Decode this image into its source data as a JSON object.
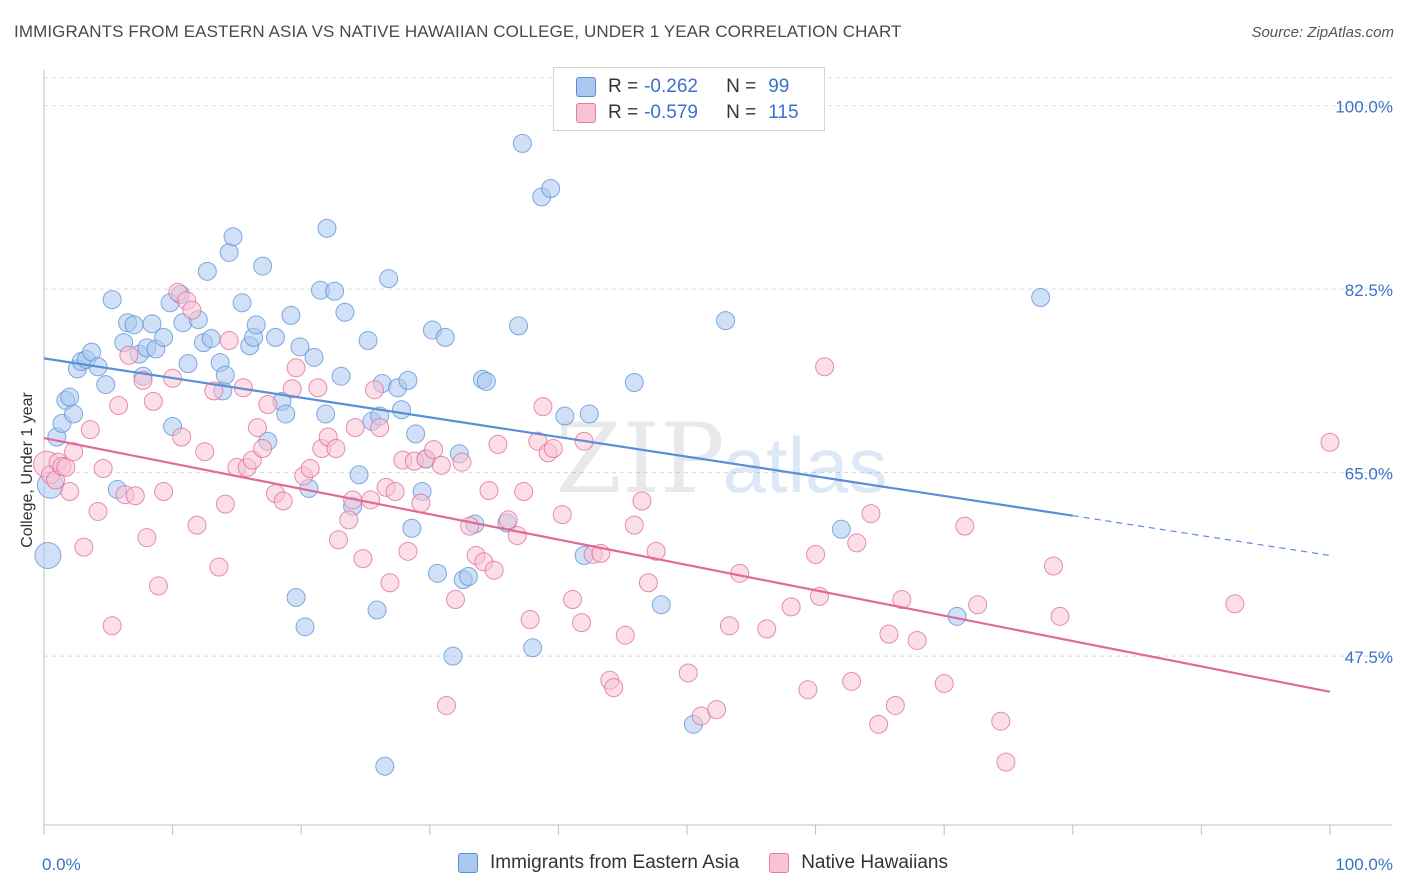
{
  "title": "IMMIGRANTS FROM EASTERN ASIA VS NATIVE HAWAIIAN COLLEGE, UNDER 1 YEAR CORRELATION CHART",
  "source": "Source: ZipAtlas.com",
  "watermark": {
    "zip": "ZIP",
    "atlas": "atlas"
  },
  "stats": [
    {
      "r_label": "R =",
      "r_value": "-0.262",
      "n_label": "N =",
      "n_value": "99",
      "fill": "#aac8f0",
      "stroke": "#5a8fd6"
    },
    {
      "r_label": "R =",
      "r_value": "-0.579",
      "n_label": "N =",
      "n_value": "115",
      "fill": "#f8c3d5",
      "stroke": "#e87aa0"
    }
  ],
  "chart_data": {
    "type": "scatter",
    "xlabel": "",
    "ylabel": "College, Under 1 year",
    "xlim": [
      0,
      100
    ],
    "ylim": [
      31.4,
      103.4
    ],
    "y_ticks": [
      47.5,
      65.0,
      82.5,
      100.0
    ],
    "y_tick_labels": [
      "47.5%",
      "65.0%",
      "82.5%",
      "100.0%"
    ],
    "x_tick_labels": [
      "0.0%",
      "100.0%"
    ],
    "grid": true,
    "legend_position": "bottom-center",
    "series": [
      {
        "name": "Immigrants from Eastern Asia",
        "color": "#5a8fd6",
        "fill": "#aac8f0",
        "trend": {
          "x": [
            0,
            80
          ],
          "y": [
            75.9,
            60.9
          ],
          "dashed_to": [
            100,
            57.1
          ]
        },
        "points": [
          [
            0.3,
            57.1
          ],
          [
            0.5,
            63.8
          ],
          [
            1.0,
            68.4
          ],
          [
            1.4,
            69.7
          ],
          [
            1.7,
            71.9
          ],
          [
            2.0,
            72.2
          ],
          [
            2.3,
            70.6
          ],
          [
            2.6,
            74.9
          ],
          [
            2.9,
            75.6
          ],
          [
            3.3,
            75.8
          ],
          [
            3.7,
            76.5
          ],
          [
            4.2,
            75.1
          ],
          [
            4.8,
            73.4
          ],
          [
            5.3,
            81.5
          ],
          [
            5.7,
            63.4
          ],
          [
            6.2,
            77.4
          ],
          [
            6.5,
            79.3
          ],
          [
            7.0,
            79.1
          ],
          [
            7.4,
            76.3
          ],
          [
            7.7,
            74.2
          ],
          [
            8.0,
            76.9
          ],
          [
            8.4,
            79.2
          ],
          [
            8.7,
            76.8
          ],
          [
            9.3,
            77.9
          ],
          [
            9.8,
            81.2
          ],
          [
            10.0,
            69.4
          ],
          [
            10.6,
            82.0
          ],
          [
            10.8,
            79.3
          ],
          [
            11.2,
            75.4
          ],
          [
            12.0,
            79.6
          ],
          [
            12.4,
            77.4
          ],
          [
            12.7,
            84.2
          ],
          [
            13.0,
            77.8
          ],
          [
            13.7,
            75.5
          ],
          [
            13.9,
            72.8
          ],
          [
            14.1,
            74.3
          ],
          [
            14.4,
            86.0
          ],
          [
            14.7,
            87.5
          ],
          [
            15.4,
            81.2
          ],
          [
            16.0,
            77.1
          ],
          [
            16.3,
            77.9
          ],
          [
            16.5,
            79.1
          ],
          [
            17.0,
            84.7
          ],
          [
            17.4,
            68.0
          ],
          [
            18.0,
            77.9
          ],
          [
            18.5,
            71.8
          ],
          [
            18.8,
            70.6
          ],
          [
            19.2,
            80.0
          ],
          [
            19.6,
            53.1
          ],
          [
            19.9,
            77.0
          ],
          [
            20.3,
            50.3
          ],
          [
            20.6,
            63.5
          ],
          [
            21.0,
            76.0
          ],
          [
            21.5,
            82.4
          ],
          [
            21.9,
            70.6
          ],
          [
            22.0,
            88.3
          ],
          [
            22.6,
            82.3
          ],
          [
            23.1,
            74.2
          ],
          [
            23.4,
            80.3
          ],
          [
            24.0,
            61.8
          ],
          [
            24.5,
            64.8
          ],
          [
            25.2,
            77.6
          ],
          [
            25.5,
            69.9
          ],
          [
            25.9,
            51.9
          ],
          [
            26.3,
            73.5
          ],
          [
            26.1,
            70.4
          ],
          [
            26.5,
            37.0
          ],
          [
            26.8,
            83.5
          ],
          [
            27.5,
            73.1
          ],
          [
            27.8,
            71.0
          ],
          [
            28.3,
            73.8
          ],
          [
            28.6,
            59.7
          ],
          [
            28.9,
            68.7
          ],
          [
            29.4,
            63.2
          ],
          [
            29.7,
            66.3
          ],
          [
            30.2,
            78.6
          ],
          [
            30.6,
            55.4
          ],
          [
            31.2,
            77.9
          ],
          [
            31.8,
            47.5
          ],
          [
            32.3,
            66.8
          ],
          [
            32.6,
            54.8
          ],
          [
            33.0,
            55.1
          ],
          [
            33.5,
            60.1
          ],
          [
            34.1,
            73.9
          ],
          [
            34.4,
            73.7
          ],
          [
            36.0,
            60.2
          ],
          [
            36.9,
            79.0
          ],
          [
            37.2,
            96.4
          ],
          [
            38.0,
            48.3
          ],
          [
            38.7,
            91.3
          ],
          [
            39.4,
            92.1
          ],
          [
            40.5,
            70.4
          ],
          [
            42.0,
            57.1
          ],
          [
            42.4,
            70.6
          ],
          [
            45.9,
            73.6
          ],
          [
            48.0,
            52.4
          ],
          [
            50.5,
            41.0
          ],
          [
            53.0,
            79.5
          ],
          [
            62.0,
            59.6
          ],
          [
            71.0,
            51.3
          ],
          [
            77.5,
            81.7
          ]
        ]
      },
      {
        "name": "Native Hawaiians",
        "color": "#e06a95",
        "fill": "#f8c3d5",
        "trend": {
          "x": [
            0,
            100
          ],
          "y": [
            68.3,
            44.1
          ]
        },
        "points": [
          [
            0.2,
            65.8
          ],
          [
            0.5,
            64.8
          ],
          [
            0.9,
            64.3
          ],
          [
            1.1,
            66.0
          ],
          [
            1.4,
            65.6
          ],
          [
            1.7,
            65.5
          ],
          [
            2.0,
            63.2
          ],
          [
            2.3,
            67.0
          ],
          [
            3.1,
            57.9
          ],
          [
            3.6,
            69.1
          ],
          [
            4.2,
            61.3
          ],
          [
            4.6,
            65.4
          ],
          [
            5.3,
            50.4
          ],
          [
            5.8,
            71.4
          ],
          [
            6.3,
            62.9
          ],
          [
            6.6,
            76.2
          ],
          [
            7.1,
            62.8
          ],
          [
            7.7,
            73.8
          ],
          [
            8.0,
            58.8
          ],
          [
            8.5,
            71.8
          ],
          [
            8.9,
            54.2
          ],
          [
            9.3,
            63.2
          ],
          [
            10.0,
            74.0
          ],
          [
            10.4,
            82.2
          ],
          [
            10.7,
            68.4
          ],
          [
            11.1,
            81.4
          ],
          [
            11.5,
            80.5
          ],
          [
            11.9,
            60.0
          ],
          [
            12.5,
            67.0
          ],
          [
            13.2,
            72.8
          ],
          [
            13.6,
            56.0
          ],
          [
            14.1,
            62.0
          ],
          [
            14.4,
            77.6
          ],
          [
            15.0,
            65.5
          ],
          [
            15.5,
            73.1
          ],
          [
            15.8,
            65.5
          ],
          [
            16.2,
            66.2
          ],
          [
            16.6,
            69.3
          ],
          [
            17.0,
            67.3
          ],
          [
            17.4,
            71.5
          ],
          [
            18.0,
            63.0
          ],
          [
            18.6,
            62.3
          ],
          [
            19.3,
            73.0
          ],
          [
            19.6,
            75.0
          ],
          [
            20.2,
            64.7
          ],
          [
            20.7,
            65.4
          ],
          [
            21.3,
            73.1
          ],
          [
            21.6,
            67.3
          ],
          [
            22.1,
            68.4
          ],
          [
            22.7,
            67.3
          ],
          [
            22.9,
            58.6
          ],
          [
            23.7,
            60.5
          ],
          [
            24.2,
            69.3
          ],
          [
            24.0,
            62.4
          ],
          [
            24.8,
            56.8
          ],
          [
            25.4,
            62.4
          ],
          [
            25.7,
            72.9
          ],
          [
            26.1,
            69.3
          ],
          [
            26.6,
            63.6
          ],
          [
            26.9,
            54.5
          ],
          [
            27.3,
            63.2
          ],
          [
            27.9,
            66.2
          ],
          [
            28.3,
            57.5
          ],
          [
            28.8,
            66.1
          ],
          [
            29.3,
            62.1
          ],
          [
            29.7,
            66.3
          ],
          [
            30.3,
            67.2
          ],
          [
            30.9,
            65.7
          ],
          [
            31.3,
            42.8
          ],
          [
            32.0,
            52.9
          ],
          [
            32.5,
            66.0
          ],
          [
            33.1,
            59.9
          ],
          [
            33.6,
            57.1
          ],
          [
            34.2,
            56.5
          ],
          [
            34.6,
            63.3
          ],
          [
            35.0,
            55.7
          ],
          [
            35.3,
            67.7
          ],
          [
            36.1,
            60.5
          ],
          [
            36.8,
            59.0
          ],
          [
            37.3,
            63.2
          ],
          [
            37.8,
            51.0
          ],
          [
            38.4,
            68.0
          ],
          [
            38.8,
            71.3
          ],
          [
            39.2,
            66.9
          ],
          [
            39.6,
            67.3
          ],
          [
            40.3,
            61.0
          ],
          [
            41.1,
            52.9
          ],
          [
            41.8,
            50.7
          ],
          [
            42.0,
            68.0
          ],
          [
            42.7,
            57.2
          ],
          [
            43.3,
            57.3
          ],
          [
            44.0,
            45.2
          ],
          [
            44.3,
            44.5
          ],
          [
            45.2,
            49.5
          ],
          [
            45.9,
            60.0
          ],
          [
            46.5,
            62.3
          ],
          [
            47.0,
            54.5
          ],
          [
            47.6,
            57.5
          ],
          [
            50.1,
            45.9
          ],
          [
            51.1,
            41.8
          ],
          [
            52.3,
            42.4
          ],
          [
            53.3,
            50.4
          ],
          [
            54.1,
            55.4
          ],
          [
            56.2,
            50.1
          ],
          [
            58.1,
            52.2
          ],
          [
            59.4,
            44.3
          ],
          [
            60.0,
            57.2
          ],
          [
            60.7,
            75.1
          ],
          [
            60.3,
            53.2
          ],
          [
            62.8,
            45.1
          ],
          [
            63.2,
            58.3
          ],
          [
            64.3,
            61.1
          ],
          [
            64.9,
            41.0
          ],
          [
            65.7,
            49.6
          ],
          [
            66.2,
            42.8
          ],
          [
            66.7,
            52.9
          ],
          [
            67.9,
            49.0
          ],
          [
            70.0,
            44.9
          ],
          [
            71.6,
            59.9
          ],
          [
            72.6,
            52.4
          ],
          [
            74.4,
            41.3
          ],
          [
            74.8,
            37.4
          ],
          [
            78.5,
            56.1
          ],
          [
            79.0,
            51.3
          ],
          [
            92.6,
            52.5
          ],
          [
            100.0,
            67.9
          ]
        ]
      }
    ]
  }
}
